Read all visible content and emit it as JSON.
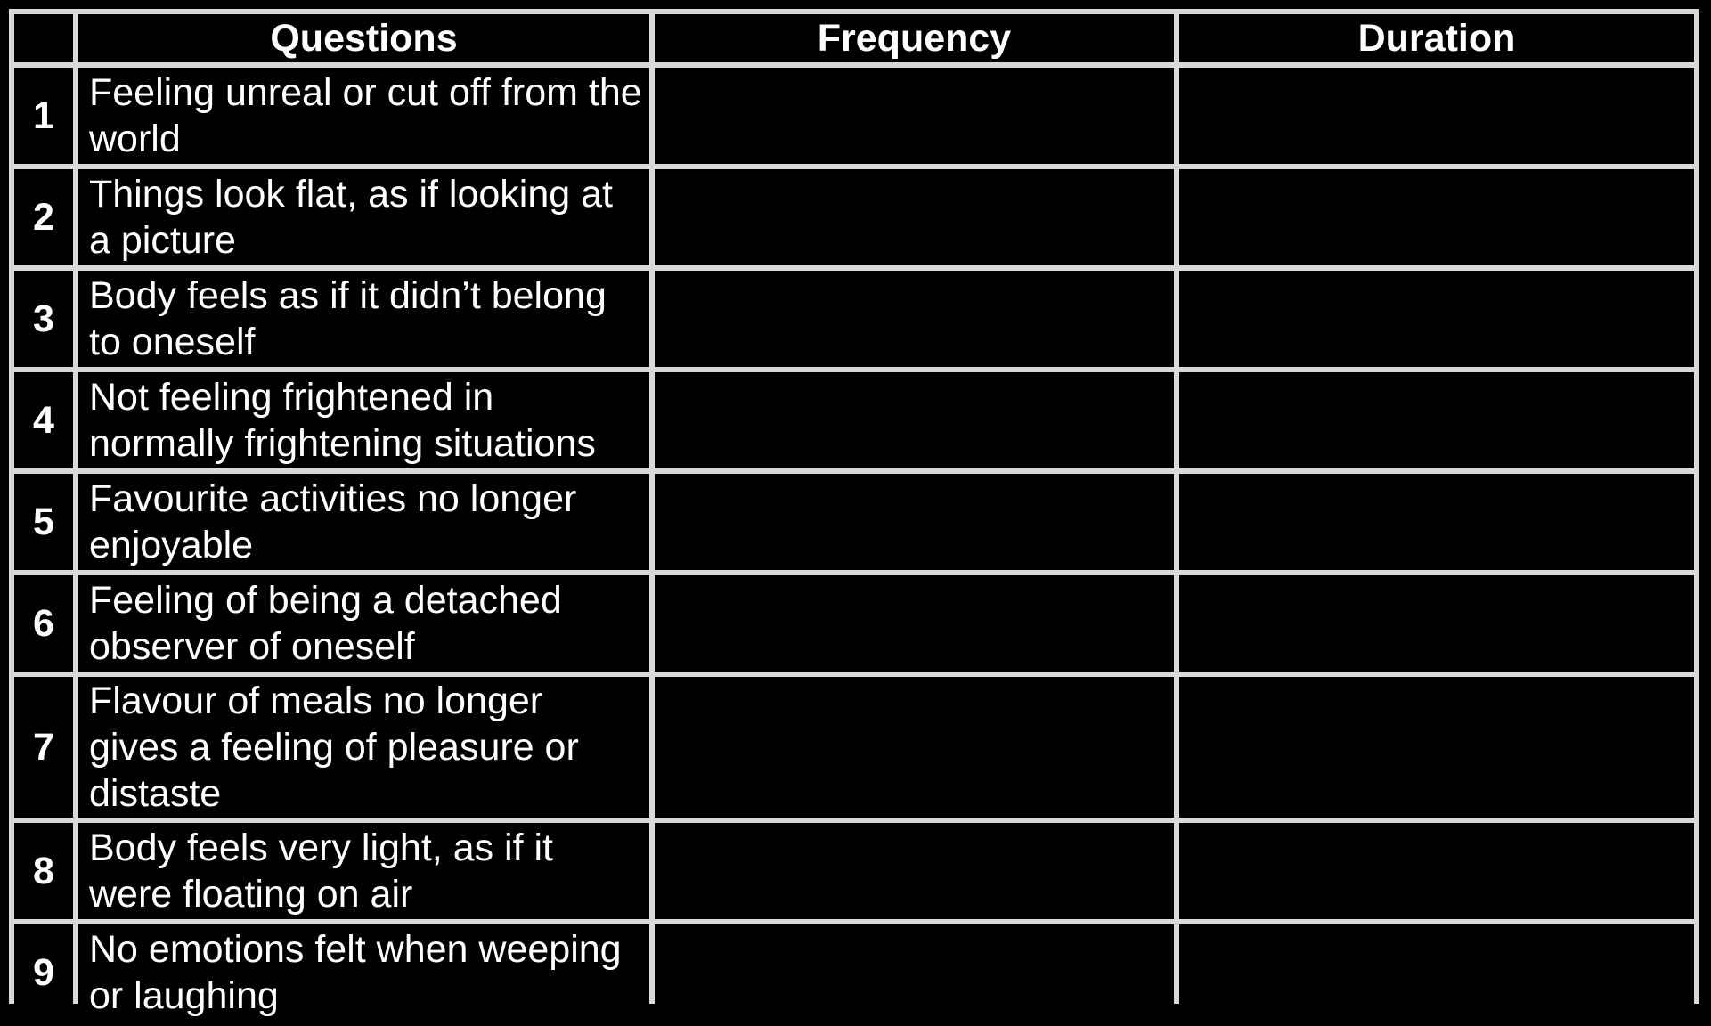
{
  "table": {
    "headers": [
      "",
      "Questions",
      "Frequency",
      "Duration"
    ],
    "rows": [
      {
        "num": "1",
        "question": "Feeling unreal or cut off from the world",
        "frequency": "",
        "duration": ""
      },
      {
        "num": "2",
        "question": "Things look flat, as if looking at a picture",
        "frequency": "",
        "duration": ""
      },
      {
        "num": "3",
        "question": "Body feels as if it didn’t belong to oneself",
        "frequency": "",
        "duration": ""
      },
      {
        "num": "4",
        "question": "Not feeling frightened in normally frightening situations",
        "frequency": "",
        "duration": ""
      },
      {
        "num": "5",
        "question": "Favourite activities no longer enjoyable",
        "frequency": "",
        "duration": ""
      },
      {
        "num": "6",
        "question": "Feeling of being a detached observer of oneself",
        "frequency": "",
        "duration": ""
      },
      {
        "num": "7",
        "question": "Flavour of meals no longer gives a feeling of pleasure or distaste",
        "frequency": "",
        "duration": ""
      },
      {
        "num": "8",
        "question": "Body feels very light, as if it were floating on air",
        "frequency": "",
        "duration": ""
      },
      {
        "num": "9",
        "question": "No emotions felt when weeping or laughing",
        "frequency": "",
        "duration": ""
      }
    ]
  },
  "colors": {
    "background": "#000000",
    "grid": "#d9d9d9",
    "text": "#ffffff"
  }
}
